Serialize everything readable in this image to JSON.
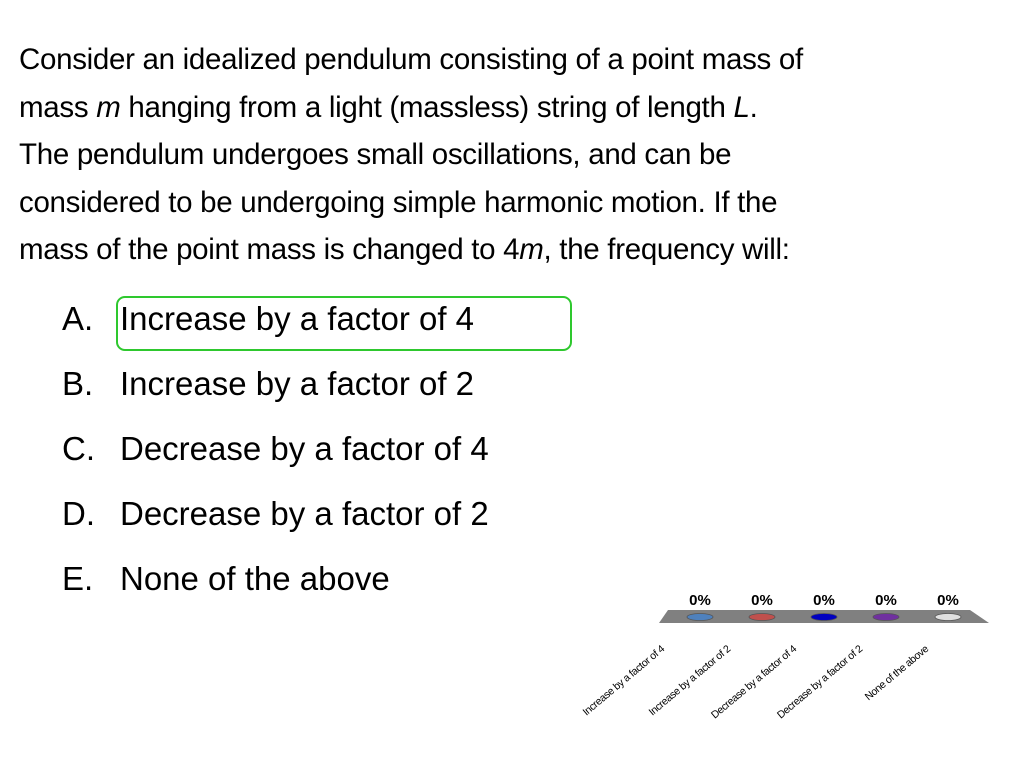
{
  "question": {
    "lines": [
      [
        "Consider an idealized pendulum consisting of a point mass of"
      ],
      [
        "mass ",
        "m",
        " hanging from a light (massless) string of length ",
        "L",
        "."
      ],
      [
        "The pendulum undergoes small oscillations, and can be"
      ],
      [
        "considered to be undergoing simple harmonic motion. If the"
      ],
      [
        "mass of the point mass is changed to 4",
        "m",
        ", the frequency will:"
      ]
    ]
  },
  "options": [
    {
      "letter": "A.",
      "text": "Increase by a factor of 4",
      "highlighted": true
    },
    {
      "letter": "B.",
      "text": "Increase by a factor of 2"
    },
    {
      "letter": "C.",
      "text": "Decrease by a factor of 4"
    },
    {
      "letter": "D.",
      "text": "Decrease by a factor of 2"
    },
    {
      "letter": "E.",
      "text": "None of the above"
    }
  ],
  "highlight_color": "#2ec82e",
  "chart_data": {
    "type": "bar",
    "categories": [
      "Increase by a factor of 4",
      "Increase by a factor of 2",
      "Decrease by a factor of 4",
      "Decrease by a factor of 2",
      "None of the above"
    ],
    "values": [
      0,
      0,
      0,
      0,
      0
    ],
    "data_labels": [
      "0%",
      "0%",
      "0%",
      "0%",
      "0%"
    ],
    "colors": [
      "#4f81bd",
      "#c0504d",
      "#0000c0",
      "#7030a0",
      "#e0e0e0"
    ],
    "ylim": [
      0,
      100
    ],
    "grid": false
  }
}
